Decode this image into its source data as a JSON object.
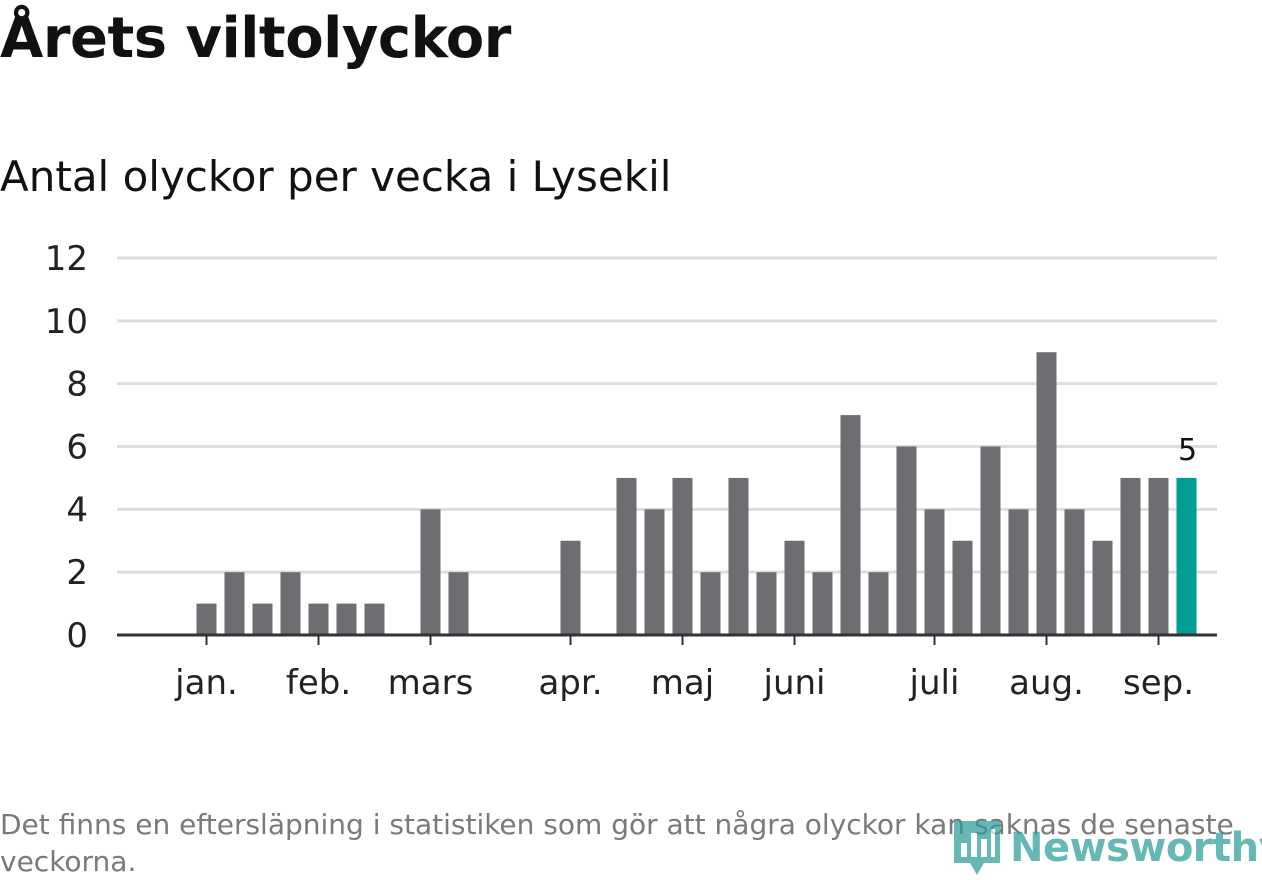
{
  "title": "Årets viltolyckor",
  "subtitle": "Antal olyckor per vecka i Lysekil",
  "footnote": "Det finns en eftersläpning i statistiken som gör att några olyckor kan saknas de senaste veckorna.",
  "logo": {
    "text": "Newsworthy",
    "icon": "newsworthy-logo-icon"
  },
  "colors": {
    "bar": "#6e6d72",
    "highlight": "#009e94",
    "grid": "#dddddd",
    "axis": "#333333",
    "text": "#222222",
    "brand": "#2a9d9a"
  },
  "chart_data": {
    "type": "bar",
    "title": "Årets viltolyckor",
    "subtitle": "Antal olyckor per vecka i Lysekil",
    "xlabel": "",
    "ylabel": "",
    "ylim": [
      0,
      12
    ],
    "yticks": [
      0,
      2,
      4,
      6,
      8,
      10,
      12
    ],
    "grid": true,
    "weeks": [
      1,
      2,
      3,
      4,
      5,
      6,
      7,
      8,
      9,
      10,
      11,
      12,
      13,
      14,
      15,
      16,
      17,
      18,
      19,
      20,
      21,
      22,
      23,
      24,
      25,
      26,
      27,
      28,
      29,
      30,
      31,
      32,
      33,
      34,
      35,
      36,
      37,
      38,
      39
    ],
    "values": [
      0,
      0,
      1,
      2,
      1,
      2,
      1,
      1,
      1,
      0,
      4,
      2,
      0,
      0,
      0,
      3,
      0,
      5,
      4,
      5,
      2,
      5,
      2,
      3,
      2,
      7,
      2,
      6,
      4,
      3,
      6,
      4,
      9,
      4,
      3,
      5,
      5,
      5,
      0
    ],
    "highlight": {
      "week": 38,
      "value": 5,
      "label": "5"
    },
    "month_labels": [
      {
        "label": "jan.",
        "week": 3
      },
      {
        "label": "feb.",
        "week": 7
      },
      {
        "label": "mars",
        "week": 11
      },
      {
        "label": "apr.",
        "week": 16
      },
      {
        "label": "maj",
        "week": 20
      },
      {
        "label": "juni",
        "week": 24
      },
      {
        "label": "juli",
        "week": 29
      },
      {
        "label": "aug.",
        "week": 33
      },
      {
        "label": "sep.",
        "week": 37
      }
    ]
  }
}
